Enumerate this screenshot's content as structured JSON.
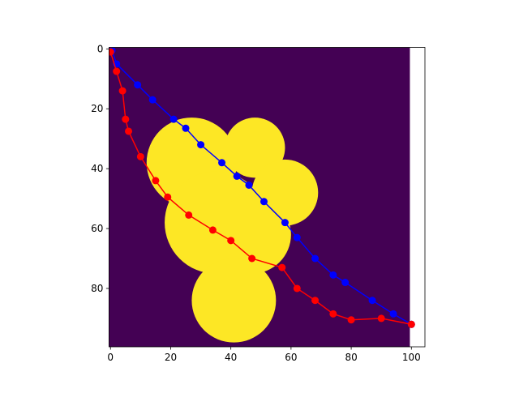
{
  "chart_data": {
    "type": "heatmap+line",
    "title": "",
    "xlabel": "",
    "ylabel": "",
    "xlim": [
      -0.5,
      104.5
    ],
    "ylim": [
      99.5,
      -0.5
    ],
    "image_extent": [
      -0.5,
      99.5,
      99.5,
      -0.5
    ],
    "y_inverted": true,
    "grid": false,
    "legend": "none",
    "x_ticks": [
      0,
      20,
      40,
      60,
      80,
      100
    ],
    "y_ticks": [
      0,
      20,
      40,
      60,
      80
    ],
    "x_tick_labels": [
      "0",
      "20",
      "40",
      "60",
      "80",
      "100"
    ],
    "y_tick_labels": [
      "0",
      "20",
      "40",
      "60",
      "80"
    ],
    "colormap": {
      "background": "#440154",
      "foreground": "#fde725"
    },
    "mask_regions": [
      {
        "shape": "circle",
        "cx": 27,
        "cy": 38,
        "r": 15
      },
      {
        "shape": "circle",
        "cx": 48,
        "cy": 33,
        "r": 10
      },
      {
        "shape": "circle",
        "cx": 35,
        "cy": 58,
        "r": 17
      },
      {
        "shape": "circle",
        "cx": 58,
        "cy": 48,
        "r": 11
      },
      {
        "shape": "circle",
        "cx": 47,
        "cy": 62,
        "r": 13
      },
      {
        "shape": "circle",
        "cx": 41,
        "cy": 84,
        "r": 14
      }
    ],
    "series": [
      {
        "color": "#0000ff",
        "x": [
          0.5,
          2,
          9,
          14,
          21,
          25,
          30,
          37,
          42,
          46,
          51,
          58,
          62,
          68,
          74,
          78,
          87,
          94,
          100
        ],
        "y": [
          0.5,
          5,
          12,
          17,
          23.5,
          26.5,
          32,
          38,
          42.5,
          45.5,
          51,
          58,
          63,
          70,
          75.5,
          78,
          84,
          88.5,
          92
        ]
      },
      {
        "color": "#ff0000",
        "x": [
          0,
          2,
          4,
          5,
          6,
          10,
          15,
          19,
          26,
          34,
          40,
          47,
          57,
          62,
          68,
          74,
          80,
          90,
          100
        ],
        "y": [
          1,
          7.5,
          14,
          23.5,
          27.5,
          36,
          44,
          49.5,
          55.5,
          60.5,
          64,
          70,
          73,
          80,
          84,
          88.5,
          90.5,
          90,
          92
        ]
      }
    ]
  }
}
